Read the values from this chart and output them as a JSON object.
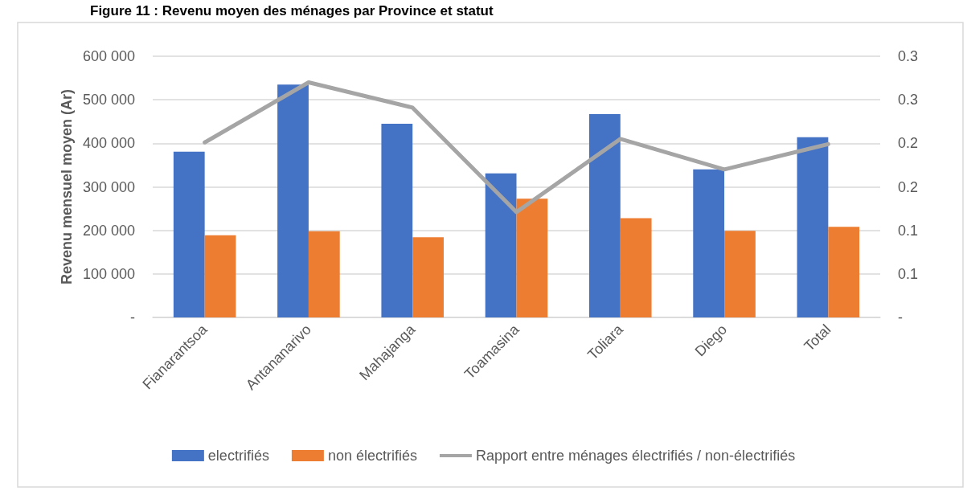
{
  "chart_data": {
    "type": "bar",
    "title": "Figure 11 : Revenu moyen des ménages par Province et statut",
    "ylabel": "Revenu mensuel moyen (Ar)",
    "categories": [
      "Fianarantsoa",
      "Antananarivo",
      "Mahajanga",
      "Toamasina",
      "Toliara",
      "Diego",
      "Total"
    ],
    "series": [
      {
        "name": "electrifiés",
        "color": "#4472c4",
        "values": [
          381000,
          535000,
          445000,
          331000,
          467000,
          340000,
          414000
        ]
      },
      {
        "name": "non électrifiés",
        "color": "#ed7d31",
        "values": [
          189000,
          198000,
          184000,
          273000,
          228000,
          199000,
          208000
        ]
      },
      {
        "name": "Rapport entre ménages électrifiés / non-électrifiés",
        "type": "line",
        "axis": "y2",
        "color": "#a5a5a5",
        "values": [
          0.201,
          0.27,
          0.241,
          0.121,
          0.205,
          0.17,
          0.199
        ]
      }
    ],
    "ylim": [
      0,
      600000
    ],
    "yticks": [
      {
        "value": 0,
        "label": "-"
      },
      {
        "value": 100000,
        "label": "100 000"
      },
      {
        "value": 200000,
        "label": "200 000"
      },
      {
        "value": 300000,
        "label": "300 000"
      },
      {
        "value": 400000,
        "label": "400 000"
      },
      {
        "value": 500000,
        "label": "500 000"
      },
      {
        "value": 600000,
        "label": "600 000"
      }
    ],
    "y2lim": [
      0,
      0.3
    ],
    "y2ticks": [
      {
        "value": 0,
        "label": "-"
      },
      {
        "value": 0.05,
        "label": "0.1"
      },
      {
        "value": 0.1,
        "label": "0.1"
      },
      {
        "value": 0.15,
        "label": "0.2"
      },
      {
        "value": 0.2,
        "label": "0.2"
      },
      {
        "value": 0.25,
        "label": "0.3"
      },
      {
        "value": 0.3,
        "label": "0.3"
      }
    ],
    "grid": "y",
    "legend": "bottom",
    "marker": "none",
    "line_style": "solid"
  }
}
